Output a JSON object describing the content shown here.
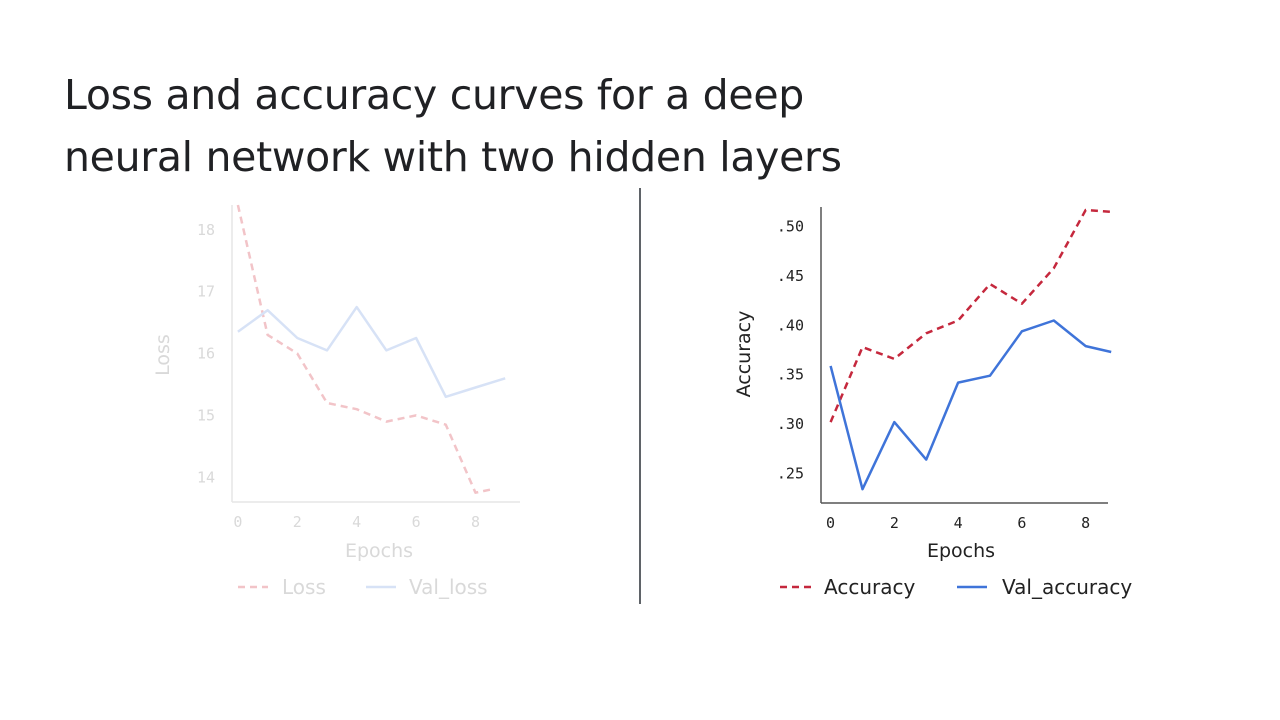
{
  "slide": {
    "title_line1": "Loss and accuracy curves for a deep",
    "title_line2": "neural network with two hidden layers"
  },
  "colors": {
    "loss_dashed": "#f2c4c8",
    "val_loss": "#d7e2f6",
    "loss_axis": "#e6e6e6",
    "loss_text": "#d9d9d9",
    "accuracy_dashed": "#c5283d",
    "val_accuracy": "#3f74d9",
    "acc_axis": "#555555",
    "acc_text": "#222222"
  },
  "chart_data": [
    {
      "type": "line",
      "faded": true,
      "xlabel": "Epochs",
      "ylabel": "Loss",
      "xlim": [
        -0.2,
        9.5
      ],
      "ylim": [
        13.6,
        18.4
      ],
      "xticks": [
        0,
        2,
        4,
        6,
        8
      ],
      "yticks": [
        14,
        15,
        16,
        17,
        18
      ],
      "ytick_labels": [
        "14",
        "15",
        "16",
        "17",
        "18"
      ],
      "grid": false,
      "legend_position": "bottom",
      "series": [
        {
          "name": "Loss",
          "style": "dashed",
          "x": [
            0,
            1,
            2,
            3,
            4,
            5,
            6,
            7,
            8,
            8.5
          ],
          "y": [
            18.4,
            16.3,
            16.0,
            15.2,
            15.1,
            14.9,
            15.0,
            14.85,
            13.75,
            13.8
          ]
        },
        {
          "name": "Val_loss",
          "style": "solid",
          "x": [
            0,
            1,
            2,
            3,
            4,
            5,
            6,
            7,
            8,
            9
          ],
          "y": [
            16.35,
            16.7,
            16.25,
            16.05,
            16.75,
            16.05,
            16.25,
            15.3,
            15.45,
            15.6
          ]
        }
      ]
    },
    {
      "type": "line",
      "faded": false,
      "xlabel": "Epochs",
      "ylabel": "Accuracy",
      "xlim": [
        -0.3,
        8.7
      ],
      "ylim": [
        0.22,
        0.52
      ],
      "xticks": [
        0,
        2,
        4,
        6,
        8
      ],
      "yticks": [
        0.25,
        0.3,
        0.35,
        0.4,
        0.45,
        0.5
      ],
      "ytick_labels": [
        ".25",
        ".30",
        ".35",
        ".40",
        ".45",
        ".50"
      ],
      "grid": false,
      "legend_position": "bottom",
      "series": [
        {
          "name": "Accuracy",
          "style": "dashed",
          "x": [
            0,
            1,
            2,
            3,
            4,
            5,
            6,
            7,
            8,
            8.8
          ],
          "y": [
            0.302,
            0.378,
            0.366,
            0.392,
            0.405,
            0.442,
            0.422,
            0.458,
            0.517,
            0.515
          ]
        },
        {
          "name": "Val_accuracy",
          "style": "solid",
          "x": [
            0,
            1,
            2,
            3,
            4,
            5,
            6,
            7,
            8,
            8.8
          ],
          "y": [
            0.359,
            0.234,
            0.302,
            0.264,
            0.342,
            0.349,
            0.394,
            0.405,
            0.379,
            0.373
          ]
        }
      ]
    }
  ]
}
